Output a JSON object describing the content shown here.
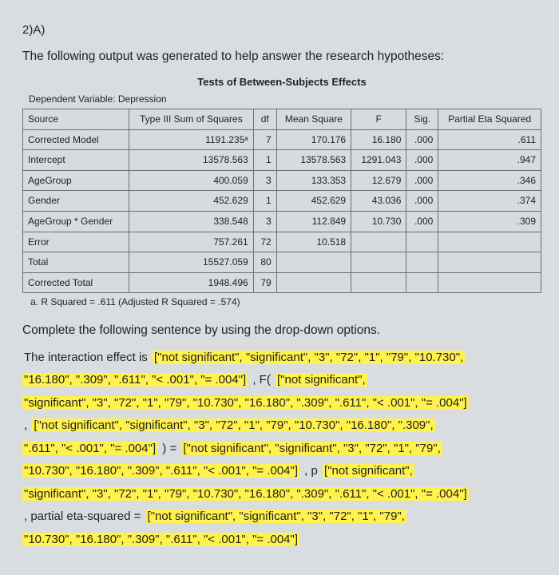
{
  "qnum": "2)A)",
  "intro": "The following output was generated to help answer the research hypotheses:",
  "table_title": "Tests of Between-Subjects Effects",
  "dep_line": "Dependent Variable:   Depression",
  "columns": [
    "Source",
    "Type III Sum of Squares",
    "df",
    "Mean Square",
    "F",
    "Sig.",
    "Partial Eta Squared"
  ],
  "rows": [
    {
      "src": "Corrected Model",
      "ss": "1191.235ᵃ",
      "df": "7",
      "ms": "170.176",
      "f": "16.180",
      "sig": ".000",
      "pes": ".611"
    },
    {
      "src": "Intercept",
      "ss": "13578.563",
      "df": "1",
      "ms": "13578.563",
      "f": "1291.043",
      "sig": ".000",
      "pes": ".947"
    },
    {
      "src": "AgeGroup",
      "ss": "400.059",
      "df": "3",
      "ms": "133.353",
      "f": "12.679",
      "sig": ".000",
      "pes": ".346"
    },
    {
      "src": "Gender",
      "ss": "452.629",
      "df": "1",
      "ms": "452.629",
      "f": "43.036",
      "sig": ".000",
      "pes": ".374"
    },
    {
      "src": "AgeGroup * Gender",
      "ss": "338.548",
      "df": "3",
      "ms": "112.849",
      "f": "10.730",
      "sig": ".000",
      "pes": ".309"
    },
    {
      "src": "Error",
      "ss": "757.261",
      "df": "72",
      "ms": "10.518",
      "f": "",
      "sig": "",
      "pes": ""
    },
    {
      "src": "Total",
      "ss": "15527.059",
      "df": "80",
      "ms": "",
      "f": "",
      "sig": "",
      "pes": ""
    },
    {
      "src": "Corrected Total",
      "ss": "1948.496",
      "df": "79",
      "ms": "",
      "f": "",
      "sig": "",
      "pes": ""
    }
  ],
  "footnote": "a. R Squared = .611 (Adjusted R Squared = .574)",
  "complete": "Complete the following sentence by using the drop-down options.",
  "seg": {
    "s1": "The interaction effect is   ",
    "opt1": "[\"not significant\", \"significant\", \"3\", \"72\", \"1\", \"79\", \"10.730\",",
    "opt1b": "\"16.180\", \".309\", \".611\", \"< .001\", \"= .004\"]",
    "s2": "      , F(        ",
    "opt2a": "[\"not significant\",",
    "opt2b": "\"significant\", \"3\", \"72\", \"1\", \"79\", \"10.730\", \"16.180\", \".309\", \".611\", \"< .001\", \"= .004\"]",
    "s3a": "   ,   ",
    "opt3a": "[\"not significant\", \"significant\", \"3\", \"72\", \"1\", \"79\", \"10.730\", \"16.180\", \".309\",",
    "opt3b": "\".611\", \"< .001\", \"= .004\"]",
    "s4": "       ) =   ",
    "opt4a": "[\"not significant\", \"significant\", \"3\", \"72\", \"1\", \"79\",",
    "opt4b": "\"10.730\", \"16.180\", \".309\", \".611\", \"< .001\", \"= .004\"]",
    "s5": "       , p   ",
    "opt5a": "[\"not significant\",",
    "opt5b": "\"significant\", \"3\", \"72\", \"1\", \"79\", \"10.730\", \"16.180\", \".309\", \".611\", \"< .001\", \"= .004\"]",
    "s6": " , partial eta-squared =  ",
    "opt6a": "[\"not significant\", \"significant\", \"3\", \"72\", \"1\", \"79\",",
    "opt6b": "\"10.730\", \"16.180\", \".309\", \".611\", \"< .001\", \"= .004\"]"
  }
}
